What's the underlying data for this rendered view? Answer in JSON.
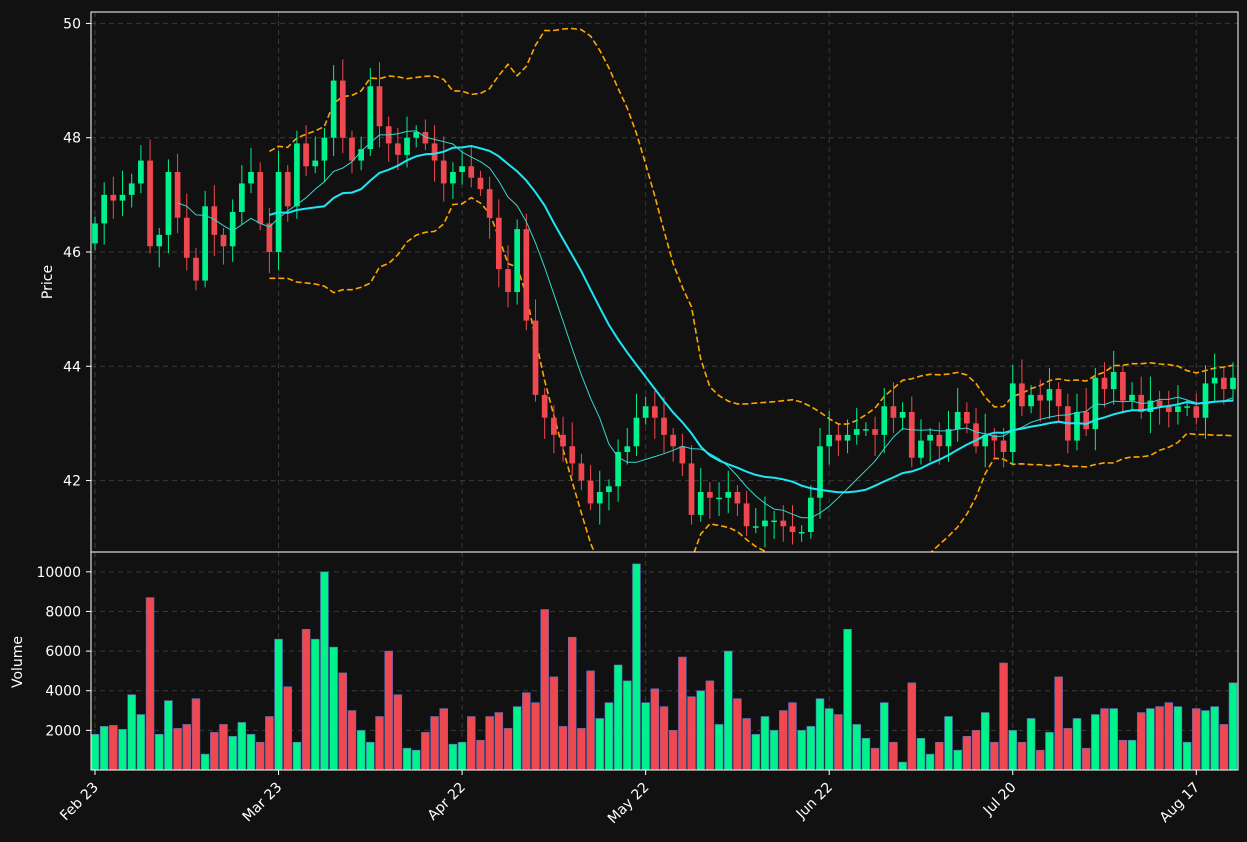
{
  "chart_data": {
    "type": "candlestick",
    "ylabel_price": "Price",
    "ylabel_volume": "Volume",
    "price_ylim": [
      40.75,
      50.2
    ],
    "price_yticks": [
      42,
      44,
      46,
      48,
      50
    ],
    "volume_ylim": [
      0,
      11000
    ],
    "volume_yticks": [
      2000,
      4000,
      6000,
      8000,
      10000
    ],
    "xticks": [
      {
        "label": "Feb 23",
        "index": 0
      },
      {
        "label": "Mar 23",
        "index": 20
      },
      {
        "label": "Apr 22",
        "index": 40
      },
      {
        "label": "May 22",
        "index": 60
      },
      {
        "label": "Jun 22",
        "index": 80
      },
      {
        "label": "Jul 20",
        "index": 100
      },
      {
        "label": "Aug 17",
        "index": 120
      }
    ],
    "grid": true,
    "colors": {
      "background": "#111111",
      "up": "#00f28c",
      "down": "#f04850",
      "sma_fast": "#34d8d0",
      "sma_slow": "#1ee6f5",
      "bollinger": "#ffa500",
      "grid": "#3a3a3a",
      "text": "#ffffff"
    },
    "series_names": [],
    "closes": [
      46.5,
      47.0,
      46.9,
      47.0,
      47.2,
      47.6,
      46.1,
      46.3,
      47.4,
      46.6,
      45.9,
      45.5,
      46.8,
      46.3,
      46.1,
      46.7,
      47.2,
      47.4,
      46.5,
      46.0,
      47.4,
      46.8,
      47.9,
      47.5,
      47.6,
      48.0,
      49.0,
      48.0,
      47.6,
      47.8,
      48.9,
      48.2,
      47.9,
      47.7,
      48.0,
      48.1,
      47.9,
      47.6,
      47.2,
      47.4,
      47.5,
      47.3,
      47.1,
      46.6,
      45.7,
      45.3,
      46.4,
      44.8,
      43.5,
      43.1,
      42.8,
      42.6,
      42.3,
      42.0,
      41.6,
      41.8,
      41.9,
      42.5,
      42.6,
      43.1,
      43.3,
      43.1,
      42.8,
      42.6,
      42.3,
      41.4,
      41.8,
      41.7,
      41.7,
      41.8,
      41.6,
      41.2,
      41.2,
      41.3,
      41.3,
      41.2,
      41.1,
      41.1,
      41.7,
      42.6,
      42.8,
      42.7,
      42.8,
      42.9,
      42.9,
      42.8,
      43.3,
      43.1,
      43.2,
      42.4,
      42.7,
      42.8,
      42.6,
      42.9,
      43.2,
      43.0,
      42.6,
      42.8,
      42.7,
      42.5,
      43.7,
      43.3,
      43.5,
      43.4,
      43.6,
      43.3,
      42.7,
      43.2,
      42.9,
      43.8,
      43.6,
      43.9,
      43.4,
      43.5,
      43.2,
      43.4,
      43.3,
      43.2,
      43.3,
      43.3,
      43.1,
      43.7,
      43.8,
      43.6,
      43.8
    ],
    "volumes": [
      1800,
      2200,
      2250,
      2050,
      3800,
      2800,
      8700,
      1800,
      3500,
      2100,
      2300,
      3600,
      800,
      1900,
      2300,
      1700,
      2400,
      1800,
      1400,
      2700,
      6600,
      4200,
      1400,
      7100,
      6600,
      10000,
      6200,
      4900,
      3000,
      2000,
      1400,
      2700,
      6000,
      3800,
      1100,
      1000,
      1900,
      2700,
      3100,
      1300,
      1400,
      2700,
      1500,
      2700,
      2900,
      2100,
      3200,
      3900,
      3400,
      8100,
      4700,
      2200,
      6700,
      2100,
      5000,
      2600,
      3400,
      5300,
      4500,
      10400,
      3400,
      4100,
      3200,
      2000,
      5700,
      3700,
      4000,
      4500,
      2300,
      6000,
      3600,
      2600,
      1800,
      2700,
      2000,
      3000,
      3400,
      2000,
      2200,
      3600,
      3100,
      2800,
      7100,
      2300,
      1600,
      1100,
      3400,
      1400,
      400,
      4400,
      1600,
      800,
      1400,
      2700,
      1000,
      1700,
      2000,
      2900,
      1400,
      5400,
      2000,
      1400,
      2600,
      1000,
      1900,
      4700,
      2100,
      2600,
      1100,
      2800,
      3100,
      3100,
      1500,
      1500,
      2900,
      3100,
      3200,
      3400,
      3200,
      1400,
      3100,
      3000,
      3200,
      2300,
      4400
    ]
  }
}
